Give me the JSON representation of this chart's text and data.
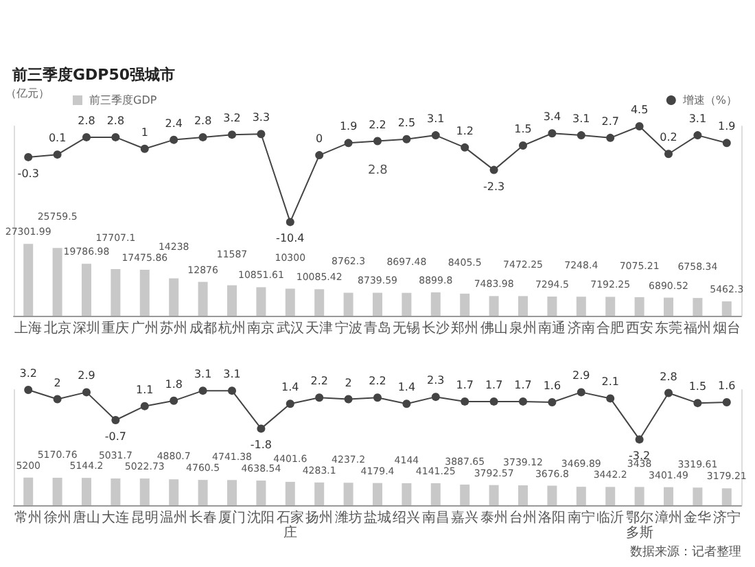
{
  "chart_data": [
    {
      "type": "bar",
      "title": "前三季度GDP50强城市",
      "ylabel": "（亿元）",
      "legend": "top",
      "data_labels": true,
      "marker": "circle",
      "categories": [
        "上海",
        "北京",
        "深圳",
        "重庆",
        "广州",
        "苏州",
        "成都",
        "杭州",
        "南京",
        "武汉",
        "天津",
        "宁波",
        "青岛",
        "无锡",
        "长沙",
        "郑州",
        "佛山",
        "泉州",
        "南通",
        "济南",
        "合肥",
        "西安",
        "东莞",
        "福州",
        "烟台"
      ],
      "series": [
        {
          "name": "前三季度GDP",
          "color": "#c8c8c8",
          "values": [
            27301.99,
            25759.5,
            19786.98,
            17707.1,
            17475.86,
            14238,
            12876,
            11587,
            10851.61,
            10300,
            10085.42,
            8762.3,
            8739.59,
            8697.48,
            8899.8,
            8405.5,
            7483.98,
            7472.25,
            7294.5,
            7248.4,
            7192.25,
            7075.21,
            6890.52,
            6758.34,
            5462.3
          ]
        },
        {
          "name": "增速（%）",
          "type": "line",
          "axis": "y2",
          "color": "#444444",
          "values": [
            -0.3,
            0.1,
            2.8,
            2.8,
            1,
            2.4,
            2.8,
            3.2,
            3.3,
            -10.4,
            0,
            1.9,
            2.2,
            2.5,
            3.1,
            1.2,
            -2.3,
            1.5,
            3.4,
            3.1,
            2.7,
            4.5,
            0.2,
            3.1,
            1.9
          ]
        }
      ],
      "ylim": [
        0,
        72000
      ],
      "y2lim": [
        -25,
        4.5
      ],
      "annotations": [
        "2.8"
      ]
    },
    {
      "type": "bar",
      "data_labels": true,
      "marker": "circle",
      "categories": [
        "常州",
        "徐州",
        "唐山",
        "大连",
        "昆明",
        "温州",
        "长春",
        "厦门",
        "沈阳",
        "石家庄",
        "扬州",
        "潍坊",
        "盐城",
        "绍兴",
        "南昌",
        "嘉兴",
        "泰州",
        "台州",
        "洛阳",
        "南宁",
        "临沂",
        "鄂尔多斯",
        "漳州",
        "金华",
        "济宁"
      ],
      "series": [
        {
          "color": "#c8c8c8",
          "values": [
            5200,
            5170.76,
            5144.2,
            5031.7,
            5022.73,
            4880.7,
            4760.5,
            4741.38,
            4638.54,
            4401.6,
            4283.1,
            4237.2,
            4179.4,
            4144,
            4141.25,
            3887.65,
            3792.57,
            3739.12,
            3676.8,
            3469.89,
            3442.2,
            3438,
            3401.49,
            3319.61,
            3179.21
          ]
        },
        {
          "type": "line",
          "axis": "y2",
          "color": "#444444",
          "values": [
            3.2,
            2,
            2.9,
            -0.7,
            1.1,
            1.8,
            3.1,
            3.1,
            -1.8,
            1.4,
            2.2,
            2,
            2.2,
            1.4,
            2.3,
            1.7,
            1.7,
            1.7,
            1.6,
            2.9,
            2.1,
            -3.2,
            2.8,
            1.5,
            1.6
          ]
        }
      ],
      "ylim": [
        0,
        21700
      ],
      "y2lim": [
        -11.7,
        3.2
      ],
      "annotations": [
        "数据来源：记者整理"
      ]
    }
  ]
}
